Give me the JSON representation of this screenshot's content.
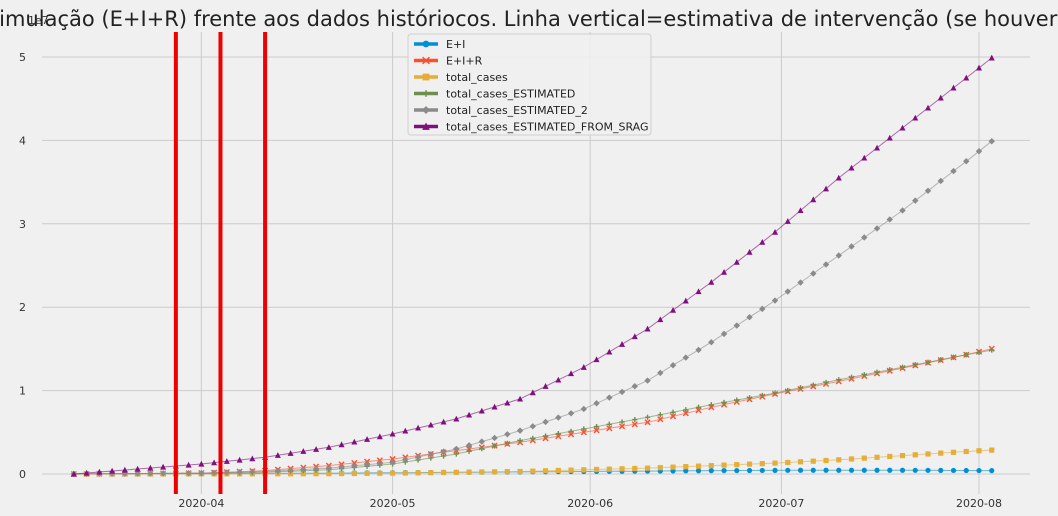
{
  "chart_data": {
    "type": "line",
    "title": "Simulação (E+I+R) frente aos dados históriocos. Linha vertical=estimativa de intervenção (se houver).",
    "xlabel": "",
    "ylabel": "",
    "y_offset_label": "1e7",
    "x_start": "2020-03-12",
    "x_end": "2020-08-05",
    "xlim_days": [
      -5,
      150
    ],
    "ylim": [
      -0.24,
      5.3
    ],
    "y_ticks": [
      0,
      1,
      2,
      3,
      4,
      5
    ],
    "y_tick_labels": [
      "0",
      "1",
      "2",
      "3",
      "4",
      "5"
    ],
    "x_ticks": [
      {
        "day": 20,
        "label": "2020-04"
      },
      {
        "day": 50,
        "label": "2020-05"
      },
      {
        "day": 81,
        "label": "2020-06"
      },
      {
        "day": 111,
        "label": "2020-07"
      },
      {
        "day": 142,
        "label": "2020-08"
      }
    ],
    "vertical_lines_day": [
      16,
      23,
      30
    ],
    "vertical_line_color": "#ee0000",
    "legend": {
      "position": "upper-center"
    },
    "series": [
      {
        "name": "E+I",
        "color": "#008fd5",
        "marker": "circle",
        "points": [
          [
            0,
            0
          ],
          [
            20,
            0.003
          ],
          [
            40,
            0.01
          ],
          [
            60,
            0.02
          ],
          [
            80,
            0.03
          ],
          [
            100,
            0.04
          ],
          [
            115,
            0.045
          ],
          [
            130,
            0.045
          ],
          [
            145,
            0.04
          ]
        ]
      },
      {
        "name": "E+I+R",
        "color": "#fc4f30",
        "marker": "x",
        "points": [
          [
            0,
            0
          ],
          [
            10,
            0.003
          ],
          [
            20,
            0.01
          ],
          [
            30,
            0.04
          ],
          [
            40,
            0.1
          ],
          [
            50,
            0.18
          ],
          [
            60,
            0.28
          ],
          [
            65,
            0.33
          ],
          [
            70,
            0.38
          ],
          [
            80,
            0.5
          ],
          [
            90,
            0.62
          ],
          [
            100,
            0.8
          ],
          [
            110,
            0.96
          ],
          [
            120,
            1.11
          ],
          [
            130,
            1.27
          ],
          [
            140,
            1.43
          ],
          [
            145,
            1.52
          ]
        ]
      },
      {
        "name": "total_cases",
        "color": "#e5ae38",
        "marker": "square",
        "points": [
          [
            0,
            0
          ],
          [
            20,
            0.001
          ],
          [
            30,
            0.002
          ],
          [
            40,
            0.004
          ],
          [
            50,
            0.01
          ],
          [
            60,
            0.02
          ],
          [
            70,
            0.03
          ],
          [
            80,
            0.05
          ],
          [
            90,
            0.07
          ],
          [
            100,
            0.1
          ],
          [
            110,
            0.13
          ],
          [
            120,
            0.17
          ],
          [
            130,
            0.22
          ],
          [
            140,
            0.27
          ],
          [
            145,
            0.29
          ]
        ]
      },
      {
        "name": "total_cases_ESTIMATED",
        "color": "#6d904f",
        "marker": "plus",
        "points": [
          [
            0,
            0
          ],
          [
            20,
            0.01
          ],
          [
            30,
            0.02
          ],
          [
            40,
            0.05
          ],
          [
            50,
            0.12
          ],
          [
            60,
            0.24
          ],
          [
            70,
            0.4
          ],
          [
            80,
            0.54
          ],
          [
            90,
            0.68
          ],
          [
            100,
            0.83
          ],
          [
            110,
            0.97
          ],
          [
            120,
            1.13
          ],
          [
            130,
            1.28
          ],
          [
            140,
            1.43
          ],
          [
            145,
            1.5
          ]
        ]
      },
      {
        "name": "total_cases_ESTIMATED_2",
        "color": "#8b8b8b",
        "marker": "diamond",
        "points": [
          [
            0,
            0
          ],
          [
            20,
            0.01
          ],
          [
            30,
            0.03
          ],
          [
            40,
            0.07
          ],
          [
            50,
            0.14
          ],
          [
            60,
            0.3
          ],
          [
            70,
            0.52
          ],
          [
            80,
            0.78
          ],
          [
            90,
            1.12
          ],
          [
            100,
            1.58
          ],
          [
            110,
            2.08
          ],
          [
            120,
            2.62
          ],
          [
            130,
            3.16
          ],
          [
            140,
            3.75
          ],
          [
            145,
            4.05
          ]
        ]
      },
      {
        "name": "total_cases_ESTIMATED_FROM_SRAG",
        "color": "#810f7c",
        "marker": "triangle",
        "points": [
          [
            0,
            0
          ],
          [
            10,
            0.06
          ],
          [
            20,
            0.12
          ],
          [
            30,
            0.2
          ],
          [
            40,
            0.32
          ],
          [
            50,
            0.48
          ],
          [
            60,
            0.66
          ],
          [
            70,
            0.9
          ],
          [
            80,
            1.28
          ],
          [
            90,
            1.74
          ],
          [
            100,
            2.3
          ],
          [
            110,
            2.9
          ],
          [
            120,
            3.55
          ],
          [
            130,
            4.15
          ],
          [
            140,
            4.75
          ],
          [
            145,
            5.05
          ]
        ]
      }
    ]
  }
}
